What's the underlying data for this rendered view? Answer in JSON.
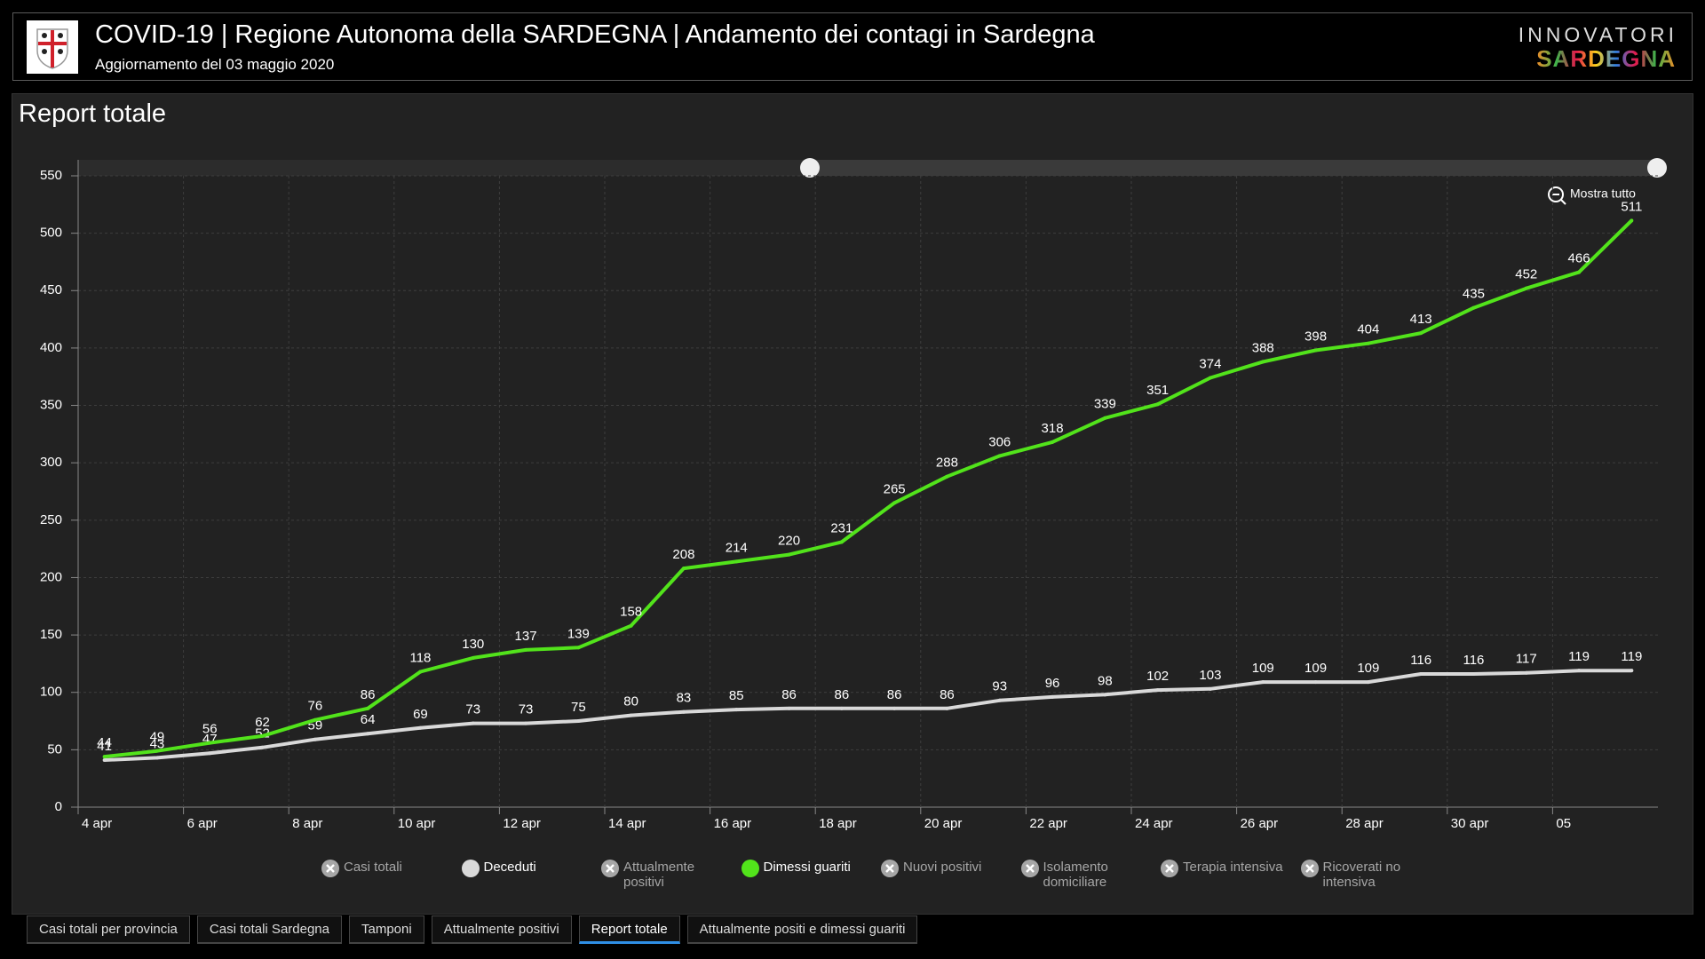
{
  "header": {
    "title": "COVID-19 | Regione Autonoma della SARDEGNA | Andamento dei contagi in Sardegna",
    "subtitle": "Aggiornamento del 03 maggio 2020",
    "brand_top": "INNOVATORI",
    "brand_bottom": "SARDEGNA"
  },
  "panel_title": "Report totale",
  "zoom_button": "Mostra tutto",
  "chart_data": {
    "type": "line",
    "x": [
      "4 apr",
      null,
      "6 apr",
      null,
      "8 apr",
      null,
      "10 apr",
      null,
      "12 apr",
      null,
      "14 apr",
      null,
      "16 apr",
      null,
      "18 apr",
      null,
      "20 apr",
      null,
      "22 apr",
      null,
      "24 apr",
      null,
      "26 apr",
      null,
      "28 apr",
      null,
      "30 apr",
      null,
      "05",
      null
    ],
    "series": [
      {
        "name": "Casi totali",
        "color": "#a6a6a6",
        "visible": false
      },
      {
        "name": "Deceduti",
        "color": "#d9d9d9",
        "visible": true,
        "values": [
          41,
          43,
          47,
          52,
          59,
          64,
          69,
          73,
          73,
          75,
          80,
          83,
          85,
          86,
          86,
          86,
          86,
          93,
          96,
          98,
          102,
          103,
          109,
          109,
          109,
          116,
          116,
          117,
          119,
          119
        ]
      },
      {
        "name": "Attualmente positivi",
        "color": "#a6a6a6",
        "visible": false
      },
      {
        "name": "Dimessi guariti",
        "color": "#52e31b",
        "visible": true,
        "values": [
          44,
          49,
          56,
          62,
          76,
          86,
          118,
          130,
          137,
          139,
          158,
          208,
          214,
          220,
          231,
          265,
          288,
          306,
          318,
          339,
          351,
          374,
          388,
          398,
          404,
          413,
          435,
          452,
          466,
          511
        ]
      },
      {
        "name": "Nuovi positivi",
        "color": "#a6a6a6",
        "visible": false
      },
      {
        "name": "Isolamento domiciliare",
        "color": "#a6a6a6",
        "visible": false
      },
      {
        "name": "Terapia intensiva",
        "color": "#a6a6a6",
        "visible": false
      },
      {
        "name": "Ricoverati no intensiva",
        "color": "#a6a6a6",
        "visible": false
      }
    ],
    "ylim": [
      0,
      550
    ],
    "yticks": [
      0,
      50,
      100,
      150,
      200,
      250,
      300,
      350,
      400,
      450,
      500,
      550
    ],
    "grid": true,
    "data_labels": true
  },
  "tabs": [
    "Casi totali per provincia",
    "Casi totali Sardegna",
    "Tamponi",
    "Attualmente positivi",
    "Report totale",
    "Attualmente positi e dimessi guariti"
  ],
  "active_tab": 4
}
